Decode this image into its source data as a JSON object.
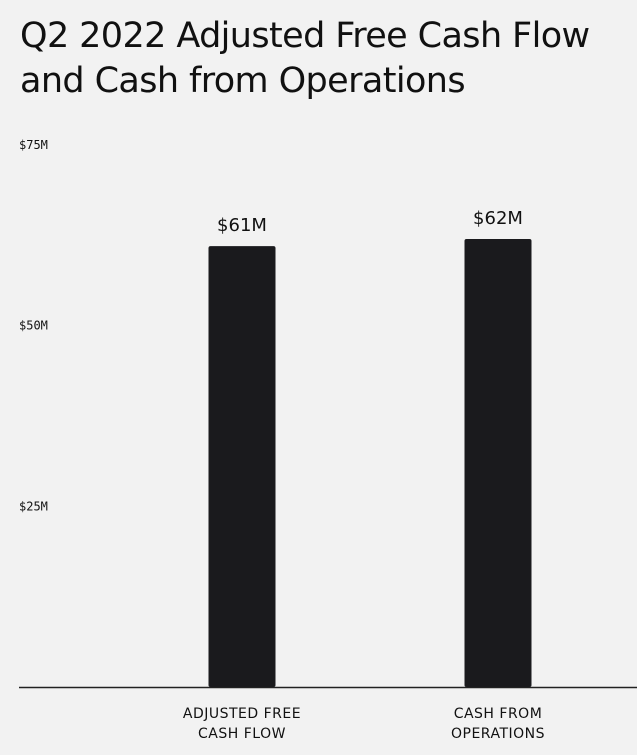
{
  "title_lines": [
    "Q2 2022 Adjusted Free Cash Flow",
    "and Cash from Operations"
  ],
  "chart_data": {
    "type": "bar",
    "title": "Q2 2022 Adjusted Free Cash Flow and Cash from Operations",
    "categories": [
      "ADJUSTED FREE CASH FLOW",
      "CASH FROM OPERATIONS"
    ],
    "category_label_lines": [
      [
        "ADJUSTED FREE",
        "CASH FLOW"
      ],
      [
        "CASH FROM",
        "OPERATIONS"
      ]
    ],
    "values": [
      61,
      62
    ],
    "data_labels": [
      "$61M",
      "$62M"
    ],
    "unit": "$M",
    "ylim": [
      0,
      75
    ],
    "yticks": [
      25,
      50,
      75
    ],
    "ytick_labels": [
      "$25M",
      "$50M",
      "$75M"
    ],
    "xlabel": "",
    "ylabel": "",
    "grid": false,
    "bar_color": "#1a1a1d",
    "axis_color": "#222222"
  }
}
